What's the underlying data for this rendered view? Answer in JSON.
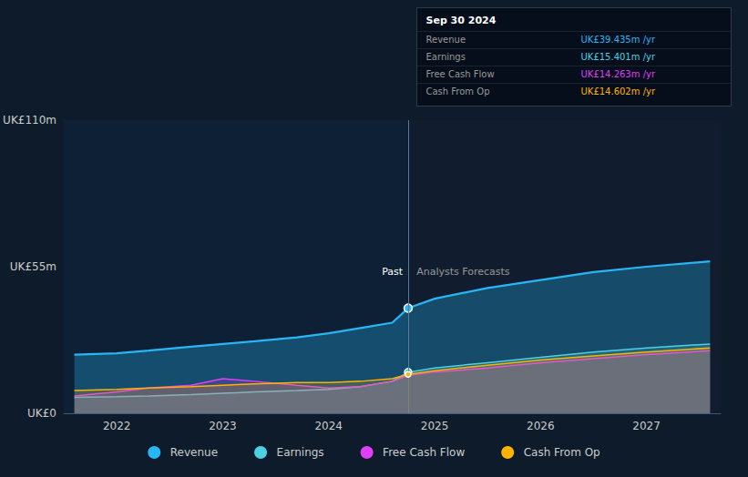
{
  "chart_data": {
    "type": "line",
    "x": [
      2021.6,
      2022.0,
      2022.3,
      2022.7,
      2023.0,
      2023.3,
      2023.7,
      2024.0,
      2024.3,
      2024.6,
      2024.75,
      2025.0,
      2025.5,
      2026.0,
      2026.5,
      2027.0,
      2027.6
    ],
    "series": [
      {
        "name": "Revenue",
        "color": "#29b6f6",
        "marker": "circle",
        "values": [
          22,
          22.5,
          23.5,
          25,
          26,
          27,
          28.5,
          30,
          32,
          34,
          39.435,
          43,
          47,
          50,
          53,
          55,
          57
        ]
      },
      {
        "name": "Earnings",
        "color": "#4dd0e1",
        "marker": "circle",
        "values": [
          6,
          6.2,
          6.5,
          7,
          7.5,
          8,
          8.5,
          9,
          10,
          12,
          15.401,
          17,
          19,
          21,
          23,
          24.5,
          26
        ]
      },
      {
        "name": "Free Cash Flow",
        "color": "#e040fb",
        "values": [
          6.5,
          8,
          9.5,
          10.5,
          13,
          12,
          10.5,
          9.5,
          10,
          12,
          14.263,
          15.5,
          17,
          19,
          20.5,
          22,
          23.5
        ]
      },
      {
        "name": "Cash From Op",
        "color": "#ffb300",
        "marker": "circle",
        "values": [
          8.5,
          9,
          9.5,
          10,
          10.5,
          11,
          11.5,
          11.5,
          12,
          13,
          14.602,
          16,
          18,
          20,
          21.5,
          23,
          24.5
        ]
      }
    ],
    "divider_x": 2024.75,
    "xlim": [
      2021.5,
      2027.7
    ],
    "xticks": [
      2022,
      2023,
      2024,
      2025,
      2026,
      2027
    ],
    "ylim": [
      0,
      110
    ],
    "yticks": [
      {
        "value": 0,
        "label": "UK£0"
      },
      {
        "value": 55,
        "label": "UK£55m"
      },
      {
        "value": 110,
        "label": "UK£110m"
      }
    ],
    "grid": true,
    "legend": "bottom",
    "annotations": [
      {
        "text": "Past",
        "x": 2024.7,
        "y": 53
      },
      {
        "text": "Analysts Forecasts",
        "x": 2024.83,
        "y": 53
      }
    ],
    "panel": {
      "title": "Sep 30 2024",
      "rows": [
        {
          "label": "Revenue",
          "value": "UK£39.435m /yr"
        },
        {
          "label": "Earnings",
          "value": "UK£15.401m /yr"
        },
        {
          "label": "Free Cash Flow",
          "value": "UK£14.263m /yr"
        },
        {
          "label": "Cash From Op",
          "value": "UK£14.602m /yr"
        }
      ]
    }
  }
}
